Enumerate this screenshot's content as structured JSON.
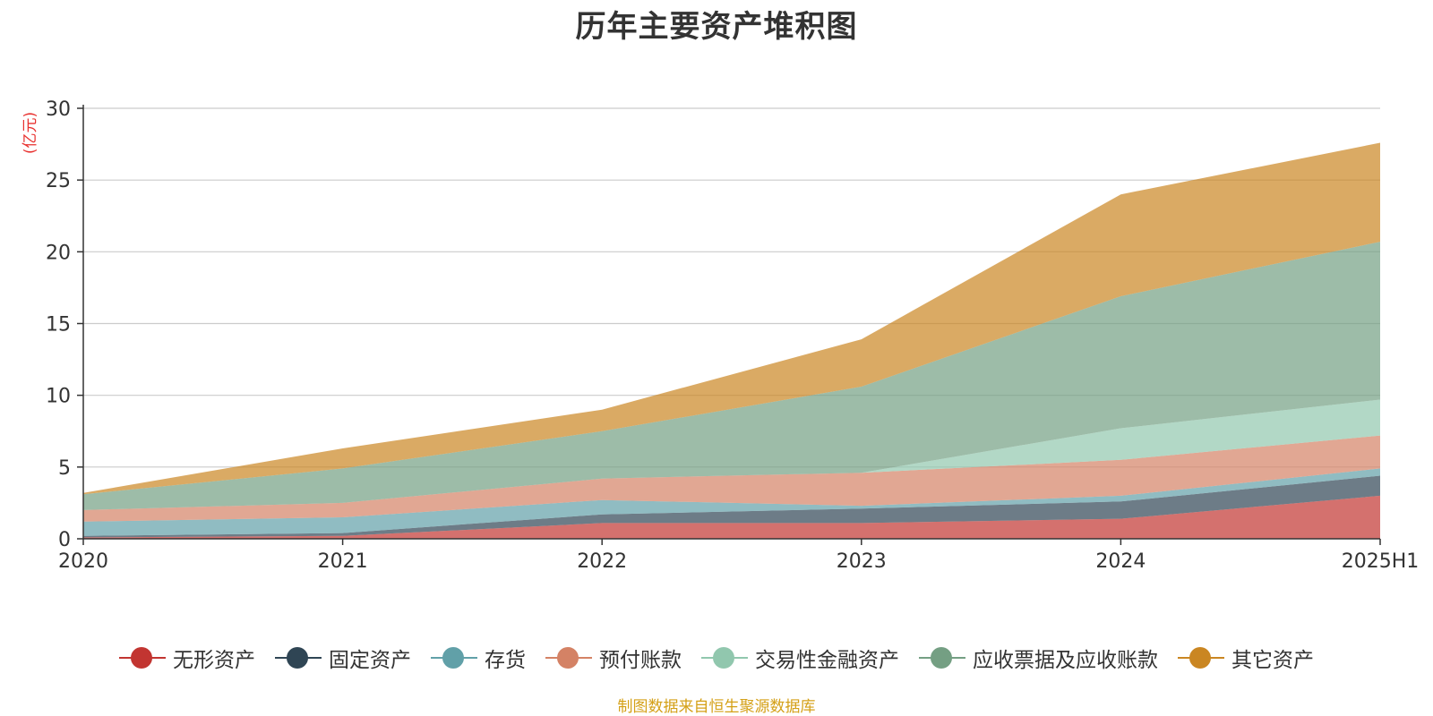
{
  "chart_data": {
    "type": "area",
    "stacked": true,
    "title": "历年主要资产堆积图",
    "unit_label": "(亿元)",
    "categories": [
      "2020",
      "2021",
      "2022",
      "2023",
      "2024",
      "2025H1"
    ],
    "ylim": [
      0,
      30
    ],
    "yticks": [
      0,
      5,
      10,
      15,
      20,
      25,
      30
    ],
    "grid": true,
    "legend_position": "bottom",
    "series": [
      {
        "name": "无形资产",
        "color": "#c23531",
        "values": [
          0.1,
          0.2,
          1.1,
          1.1,
          1.4,
          3.0
        ]
      },
      {
        "name": "固定资产",
        "color": "#2f4554",
        "values": [
          0.1,
          0.2,
          0.6,
          1.0,
          1.2,
          1.4
        ]
      },
      {
        "name": "存货",
        "color": "#61a0a8",
        "values": [
          1.0,
          1.1,
          1.0,
          0.2,
          0.4,
          0.5
        ]
      },
      {
        "name": "预付账款",
        "color": "#d48265",
        "values": [
          0.8,
          1.0,
          1.5,
          2.3,
          2.5,
          2.3
        ]
      },
      {
        "name": "交易性金融资产",
        "color": "#91c7ae",
        "values": [
          0.0,
          0.0,
          0.0,
          0.0,
          2.2,
          2.5
        ]
      },
      {
        "name": "应收票据及应收账款",
        "color": "#749f83",
        "values": [
          1.1,
          2.4,
          3.3,
          6.0,
          9.2,
          11.0
        ]
      },
      {
        "name": "其它资产",
        "color": "#ca8622",
        "values": [
          0.1,
          1.4,
          1.5,
          3.3,
          7.1,
          6.9
        ]
      }
    ]
  },
  "footer": {
    "source": "制图数据来自恒生聚源数据库"
  }
}
